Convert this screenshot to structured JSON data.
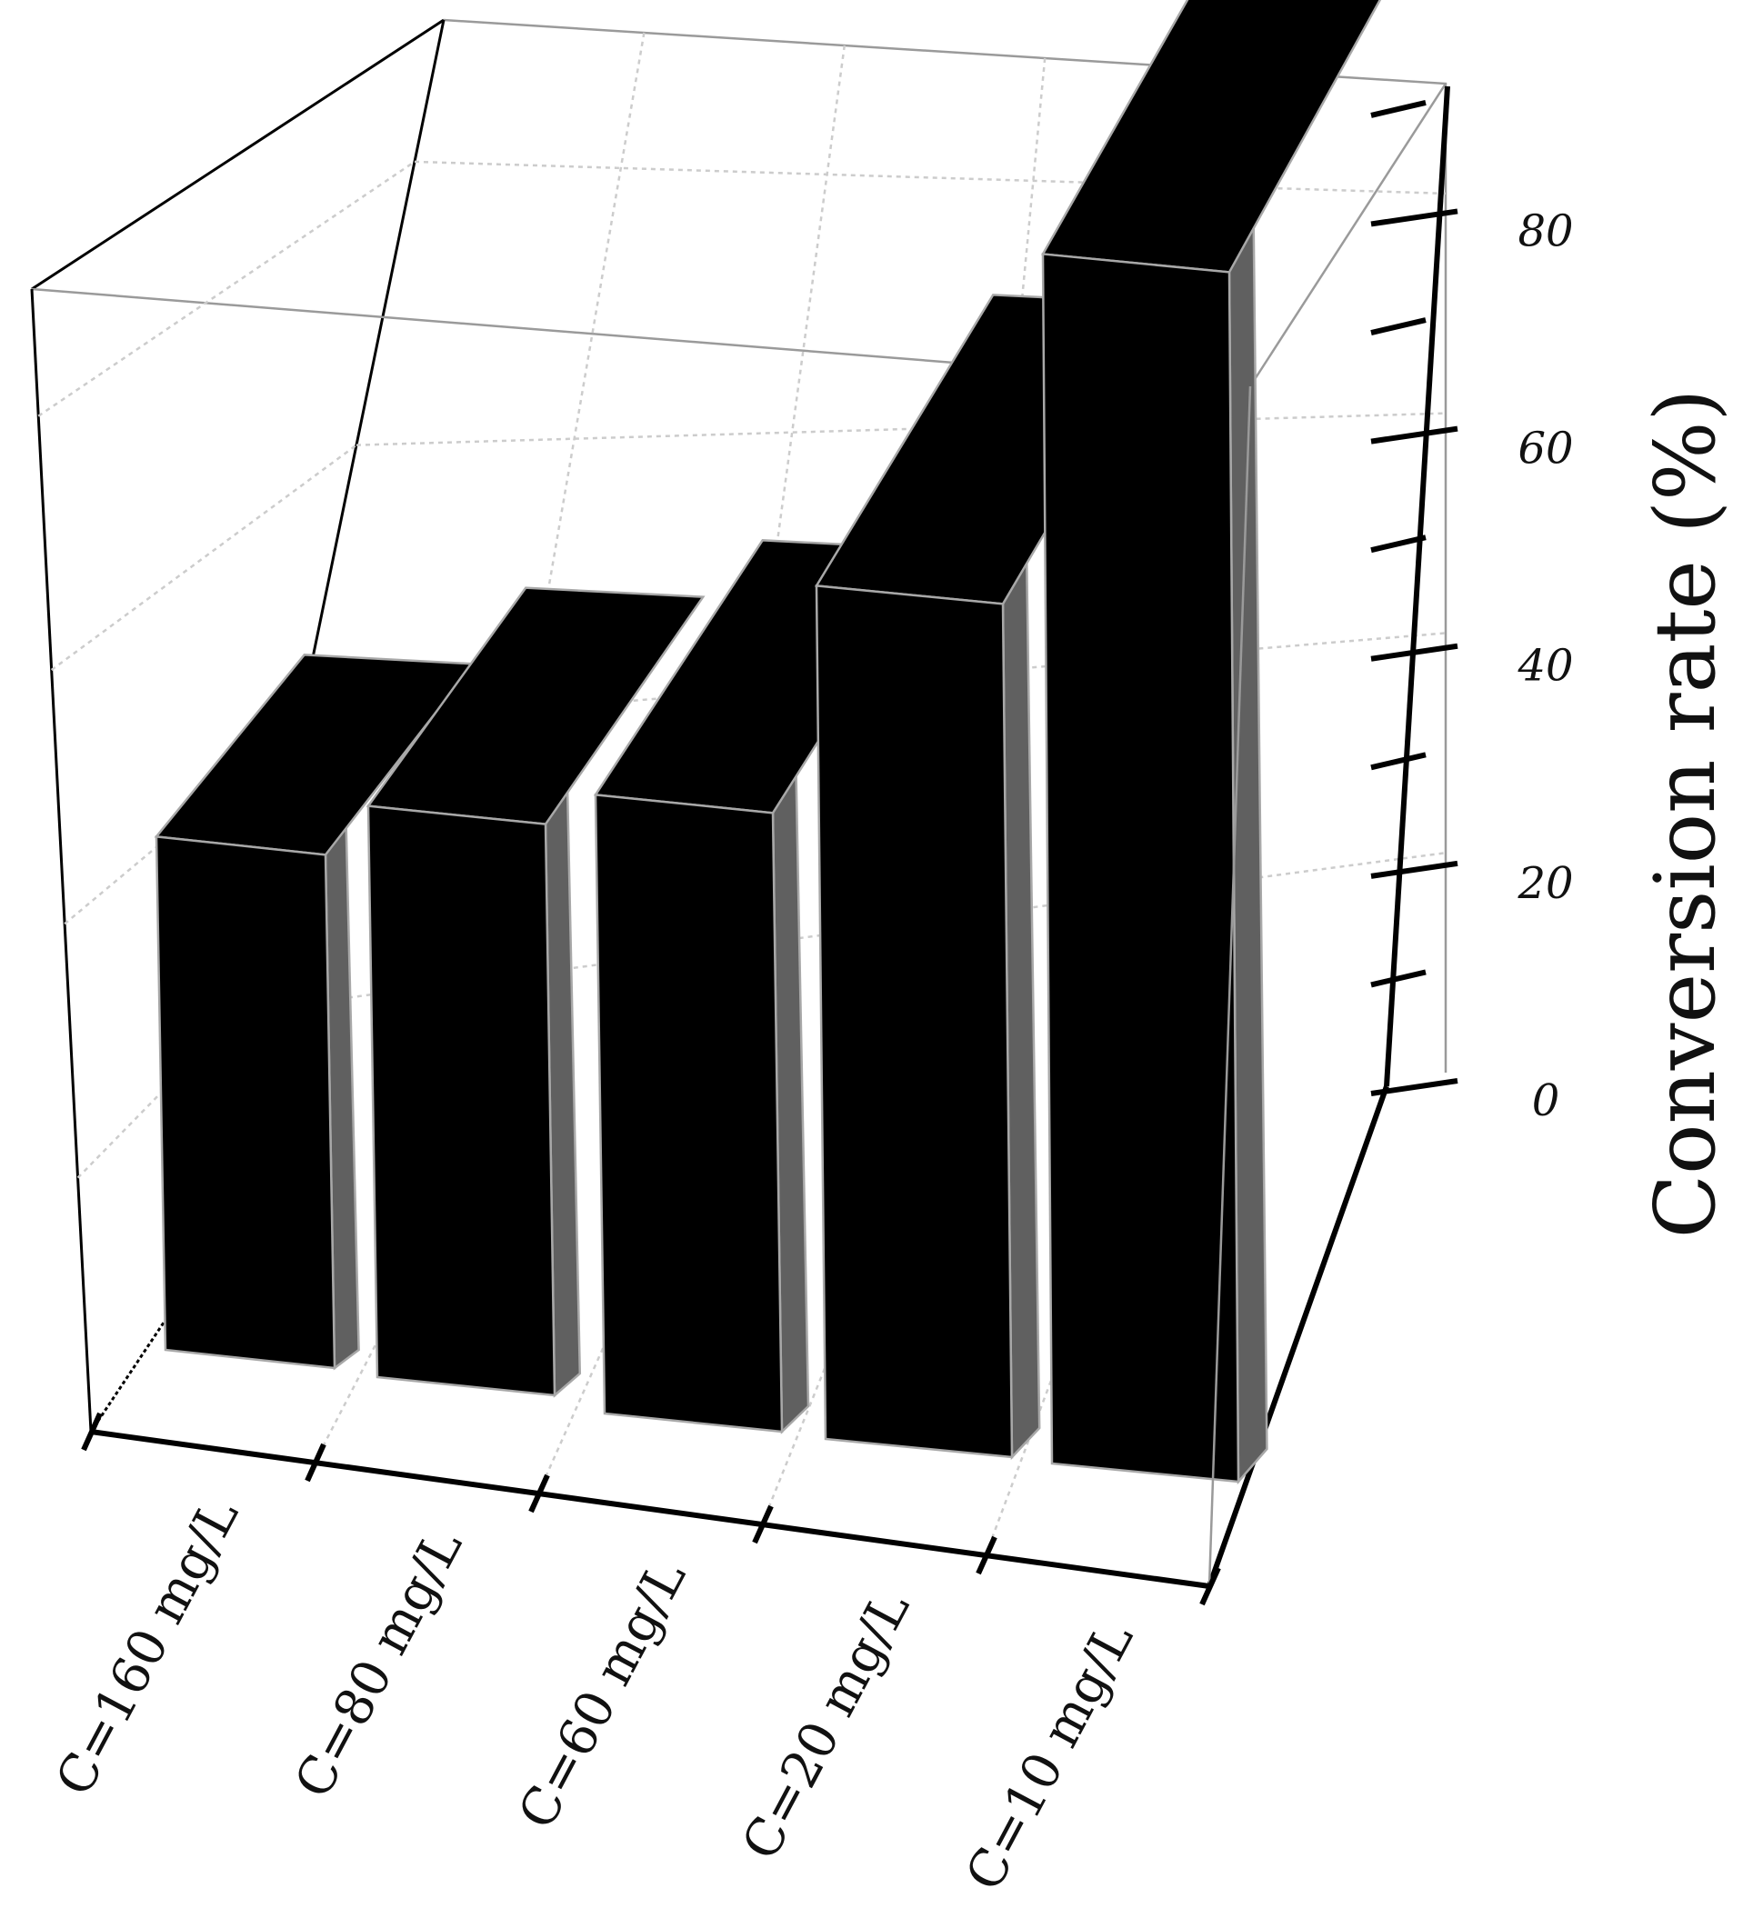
{
  "chart_data": {
    "type": "bar",
    "categories": [
      "C=160 mg/L",
      "C=80 mg/L",
      "C=60 mg/L",
      "C=20 mg/L",
      "C=10 mg/L"
    ],
    "values": [
      44,
      48,
      51,
      69,
      96
    ],
    "ylabel": "Conversion rate (%)",
    "y_ticks": [
      "0",
      "20",
      "40",
      "60",
      "80"
    ],
    "ylim": [
      0,
      90
    ],
    "projection": "3D perspective",
    "grid": true,
    "colors": {
      "bar_front": "#000000",
      "bar_top": "#000000",
      "bar_side": "#606060",
      "bar_edge": "#a8a8a8",
      "frame": "#9a9a9a",
      "grid": "#cccccc",
      "axis": "#000000"
    }
  }
}
